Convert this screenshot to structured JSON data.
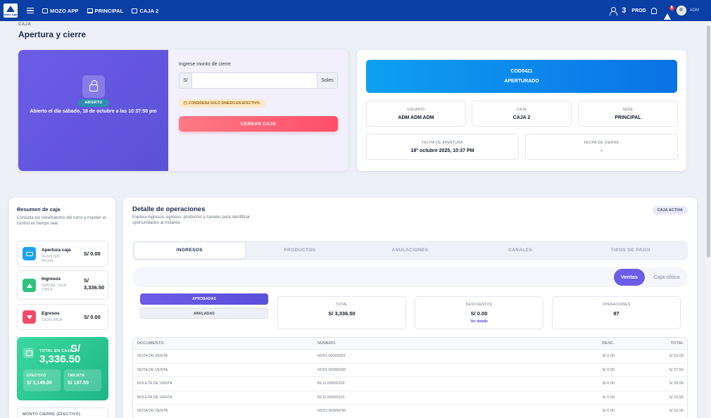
{
  "topbar": {
    "logo_text": "Mozo App",
    "nav": [
      {
        "label": "MOZO APP"
      },
      {
        "label": "PRINCIPAL"
      },
      {
        "label": "CAJA 2"
      }
    ],
    "user_count": "3",
    "env": "PROD",
    "alert_count": "8",
    "user_label": "ADM"
  },
  "header": {
    "eyebrow": "CAJA",
    "title": "Apertura y cierre"
  },
  "opening": {
    "badge": "ABIERTO",
    "opened_text": "Abierto el día sábado, 18 de octubre a las 10:37:50 pm",
    "close_label": "Ingrese monto de cierre",
    "currency_prefix": "S/",
    "amount_value": "",
    "currency_suffix": "Soles",
    "cash_note": "(*) CONSIDERA SOLO DINERO EN EFECTIVO.",
    "close_button": "CERRAR CAJA"
  },
  "info": {
    "code": "COD0421",
    "state": "APERTURADO",
    "usuario_label": "USUARIO",
    "usuario_value": "ADM ADM ADM",
    "caja_label": "CAJA",
    "caja_value": "CAJA 2",
    "sede_label": "SEDE",
    "sede_value": "PRINCIPAL",
    "apertura_label": "FECHA DE APERTURA",
    "apertura_value": "18° octubre 2025, 10:37 PM",
    "cierre_label": "FECHA DE CIERRE",
    "cierre_value": "-"
  },
  "summary": {
    "title": "Resumen de caja",
    "desc": "Consulta tus movimientos del turno y mantén el control en tiempo real.",
    "items": [
      {
        "name": "Apertura caja",
        "sub": "REGISTRO INICIAL",
        "value": "S/ 0.00"
      },
      {
        "name": "Ingresos",
        "sub": "VENTAS, CAJA CHICA",
        "value": "S/ 3,336.50"
      },
      {
        "name": "Egresos",
        "sub": "CAJA CHICA",
        "value": "S/ 0.00"
      }
    ],
    "total_label": "TOTAL EN CAJA",
    "total_value": "S/ 3,336.50",
    "efectivo_label": "EFECTIVO",
    "efectivo_value": "S/ 3,149.00",
    "tarjeta_label": "TARJETA",
    "tarjeta_value": "S/ 187.50",
    "monto_cierre_label": "MONTO CIERRE (EFECTIVO)"
  },
  "detail": {
    "title": "Detalle de operaciones",
    "desc": "Explora ingresos, egresos, productos y canales para identificar oportunidades al instante.",
    "badge": "CAJA ACTIVA",
    "tabs": [
      "INGRESOS",
      "PRODUCTOS",
      "ANULACIONES",
      "CANALES",
      "TIPOS DE PAGO"
    ],
    "filter_on": "Ventas",
    "filter_off": "Caja chica",
    "status_on": "APROBADAS",
    "status_off": "ANULADAS",
    "stats": [
      {
        "label": "TOTAL",
        "value": "S/ 3,336.50",
        "link": ""
      },
      {
        "label": "DESCUENTOS",
        "value": "S/ 0.00",
        "link": "Ver detalle"
      },
      {
        "label": "OPERACIONES",
        "value": "97",
        "link": ""
      }
    ],
    "table": {
      "headers": [
        "DOCUMENTO",
        "NÚMERO",
        "DESC.",
        "TOTAL"
      ],
      "rows": [
        [
          "NOTA DE VENTA",
          "NV01-00000251",
          "S/ 0.00",
          "S/ 10.00"
        ],
        [
          "NOTA DE VENTA",
          "NV01-00000250",
          "S/ 0.00",
          "S/ 27.50"
        ],
        [
          "BOLETA DE VENTA",
          "BL11-00000102",
          "S/ 0.00",
          "S/ 28.00"
        ],
        [
          "BOLETA DE VENTA",
          "BL11-00000101",
          "S/ 0.00",
          "S/ 10.00"
        ],
        [
          "NOTA DE VENTA",
          "NV01-00000249",
          "S/ 0.00",
          "S/ 10.00"
        ]
      ]
    }
  }
}
